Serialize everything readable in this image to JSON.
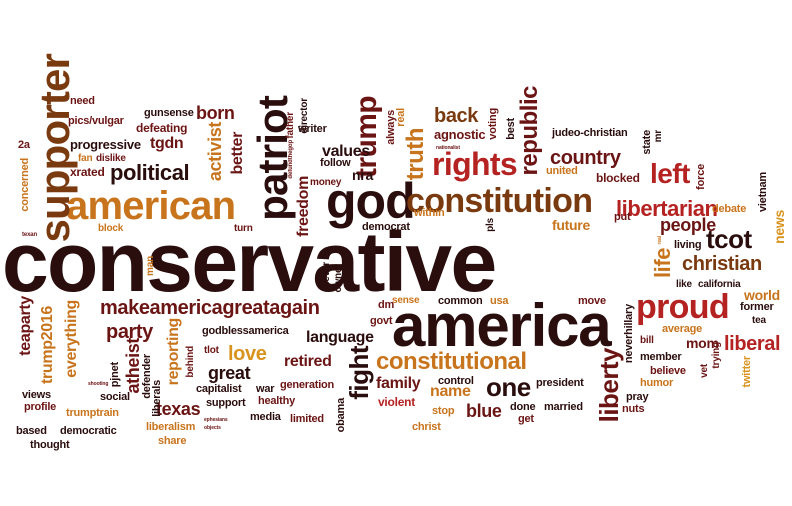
{
  "palette": {
    "dark": "#2a0d0d",
    "maroon": "#6b1414",
    "red": "#9e1b1b",
    "brown": "#7a3a10",
    "orange": "#c8741c",
    "gold": "#d9931f",
    "crimson": "#b52222"
  },
  "words": [
    {
      "t": "conservative",
      "c": "dark"
    },
    {
      "t": "america",
      "c": "dark"
    },
    {
      "t": "god",
      "c": "dark"
    },
    {
      "t": "constitution",
      "c": "brown"
    },
    {
      "t": "american",
      "c": "orange"
    },
    {
      "t": "supporter",
      "c": "brown"
    },
    {
      "t": "patriot",
      "c": "dark"
    },
    {
      "t": "trump",
      "c": "maroon"
    },
    {
      "t": "rights",
      "c": "crimson"
    },
    {
      "t": "republic",
      "c": "maroon"
    },
    {
      "t": "truth",
      "c": "orange"
    },
    {
      "t": "back",
      "c": "brown"
    },
    {
      "t": "country",
      "c": "maroon"
    },
    {
      "t": "left",
      "c": "crimson"
    },
    {
      "t": "libertarian",
      "c": "crimson"
    },
    {
      "t": "tcot",
      "c": "dark"
    },
    {
      "t": "christian",
      "c": "brown"
    },
    {
      "t": "proud",
      "c": "crimson"
    },
    {
      "t": "liberal",
      "c": "crimson"
    },
    {
      "t": "life",
      "c": "orange"
    },
    {
      "t": "people",
      "c": "maroon"
    },
    {
      "t": "makeamericagreatagain",
      "c": "maroon"
    },
    {
      "t": "constitutional",
      "c": "orange"
    },
    {
      "t": "political",
      "c": "dark"
    },
    {
      "t": "party",
      "c": "maroon"
    },
    {
      "t": "fight",
      "c": "dark"
    },
    {
      "t": "liberty",
      "c": "maroon"
    },
    {
      "t": "one",
      "c": "dark"
    },
    {
      "t": "love",
      "c": "gold"
    },
    {
      "t": "values",
      "c": "dark"
    },
    {
      "t": "nra",
      "c": "dark"
    },
    {
      "t": "freedom",
      "c": "maroon"
    },
    {
      "t": "born",
      "c": "maroon"
    },
    {
      "t": "activist",
      "c": "orange"
    },
    {
      "t": "better",
      "c": "maroon"
    },
    {
      "t": "language",
      "c": "dark"
    },
    {
      "t": "retired",
      "c": "maroon"
    },
    {
      "t": "great",
      "c": "dark"
    },
    {
      "t": "family",
      "c": "maroon"
    },
    {
      "t": "name",
      "c": "orange"
    },
    {
      "t": "blue",
      "c": "maroon"
    },
    {
      "t": "texas",
      "c": "maroon"
    },
    {
      "t": "reporting",
      "c": "orange"
    },
    {
      "t": "atheist",
      "c": "maroon"
    },
    {
      "t": "everything",
      "c": "orange"
    },
    {
      "t": "teaparty",
      "c": "maroon"
    },
    {
      "t": "trump2016",
      "c": "orange"
    },
    {
      "t": "world",
      "c": "orange"
    },
    {
      "t": "mom",
      "c": "maroon"
    },
    {
      "t": "future",
      "c": "orange"
    },
    {
      "t": "news",
      "c": "gold"
    },
    {
      "t": "tgdn",
      "c": "maroon"
    },
    {
      "t": "progressive",
      "c": "dark"
    },
    {
      "t": "xrated",
      "c": "maroon"
    },
    {
      "t": "defeating",
      "c": "maroon"
    },
    {
      "t": "gunsense",
      "c": "dark"
    },
    {
      "t": "pics/vulgar",
      "c": "maroon"
    },
    {
      "t": "need",
      "c": "maroon"
    },
    {
      "t": "fan",
      "c": "orange"
    },
    {
      "t": "dislike",
      "c": "maroon"
    },
    {
      "t": "2a",
      "c": "maroon"
    },
    {
      "t": "concerned",
      "c": "orange"
    },
    {
      "t": "block",
      "c": "orange"
    },
    {
      "t": "turn",
      "c": "maroon"
    },
    {
      "t": "money",
      "c": "maroon"
    },
    {
      "t": "follow",
      "c": "dark"
    },
    {
      "t": "writer",
      "c": "dark"
    },
    {
      "t": "father",
      "c": "maroon"
    },
    {
      "t": "director",
      "c": "dark"
    },
    {
      "t": "defundthegop",
      "c": "maroon"
    },
    {
      "t": "always",
      "c": "maroon"
    },
    {
      "t": "real",
      "c": "orange"
    },
    {
      "t": "agnostic",
      "c": "maroon"
    },
    {
      "t": "voting",
      "c": "maroon"
    },
    {
      "t": "best",
      "c": "dark"
    },
    {
      "t": "nationalist",
      "c": "maroon"
    },
    {
      "t": "judeo-christian",
      "c": "dark"
    },
    {
      "t": "state",
      "c": "dark"
    },
    {
      "t": "mr",
      "c": "dark"
    },
    {
      "t": "united",
      "c": "orange"
    },
    {
      "t": "blocked",
      "c": "maroon"
    },
    {
      "t": "force",
      "c": "maroon"
    },
    {
      "t": "vietnam",
      "c": "dark"
    },
    {
      "t": "democrat",
      "c": "dark"
    },
    {
      "t": "within",
      "c": "orange"
    },
    {
      "t": "pls",
      "c": "dark"
    },
    {
      "t": "put",
      "c": "maroon"
    },
    {
      "t": "debate",
      "c": "orange"
    },
    {
      "t": "living",
      "c": "dark"
    },
    {
      "t": "like",
      "c": "dark"
    },
    {
      "t": "california",
      "c": "dark"
    },
    {
      "t": "real",
      "c": "orange"
    },
    {
      "t": "former",
      "c": "dark"
    },
    {
      "t": "tea",
      "c": "dark"
    },
    {
      "t": "texan",
      "c": "maroon"
    },
    {
      "t": "man",
      "c": "orange"
    },
    {
      "t": "never",
      "c": "dark"
    },
    {
      "t": "owner",
      "c": "dark"
    },
    {
      "t": "dm",
      "c": "maroon"
    },
    {
      "t": "govt",
      "c": "maroon"
    },
    {
      "t": "sense",
      "c": "orange"
    },
    {
      "t": "common",
      "c": "dark"
    },
    {
      "t": "usa",
      "c": "orange"
    },
    {
      "t": "move",
      "c": "maroon"
    },
    {
      "t": "neverhillary",
      "c": "dark"
    },
    {
      "t": "average",
      "c": "orange"
    },
    {
      "t": "bill",
      "c": "maroon"
    },
    {
      "t": "member",
      "c": "dark"
    },
    {
      "t": "trying",
      "c": "maroon"
    },
    {
      "t": "believe",
      "c": "maroon"
    },
    {
      "t": "humor",
      "c": "orange"
    },
    {
      "t": "vet",
      "c": "maroon"
    },
    {
      "t": "twitter",
      "c": "gold"
    },
    {
      "t": "pray",
      "c": "dark"
    },
    {
      "t": "nuts",
      "c": "maroon"
    },
    {
      "t": "godblessamerica",
      "c": "dark"
    },
    {
      "t": "tlot",
      "c": "maroon"
    },
    {
      "t": "behind",
      "c": "maroon"
    },
    {
      "t": "pjnet",
      "c": "dark"
    },
    {
      "t": "defender",
      "c": "dark"
    },
    {
      "t": "liberals",
      "c": "dark"
    },
    {
      "t": "capitalist",
      "c": "dark"
    },
    {
      "t": "war",
      "c": "dark"
    },
    {
      "t": "generation",
      "c": "maroon"
    },
    {
      "t": "support",
      "c": "dark"
    },
    {
      "t": "healthy",
      "c": "maroon"
    },
    {
      "t": "media",
      "c": "dark"
    },
    {
      "t": "limited",
      "c": "maroon"
    },
    {
      "t": "obama",
      "c": "dark"
    },
    {
      "t": "violent",
      "c": "crimson"
    },
    {
      "t": "control",
      "c": "dark"
    },
    {
      "t": "stop",
      "c": "orange"
    },
    {
      "t": "christ",
      "c": "orange"
    },
    {
      "t": "done",
      "c": "dark"
    },
    {
      "t": "get",
      "c": "maroon"
    },
    {
      "t": "married",
      "c": "dark"
    },
    {
      "t": "president",
      "c": "dark"
    },
    {
      "t": "social",
      "c": "dark"
    },
    {
      "t": "liberalism",
      "c": "orange"
    },
    {
      "t": "share",
      "c": "orange"
    },
    {
      "t": "ephesians",
      "c": "maroon"
    },
    {
      "t": "objects",
      "c": "maroon"
    },
    {
      "t": "shooting",
      "c": "maroon"
    },
    {
      "t": "views",
      "c": "dark"
    },
    {
      "t": "profile",
      "c": "maroon"
    },
    {
      "t": "trumptrain",
      "c": "orange"
    },
    {
      "t": "based",
      "c": "dark"
    },
    {
      "t": "democratic",
      "c": "dark"
    },
    {
      "t": "thought",
      "c": "dark"
    }
  ]
}
